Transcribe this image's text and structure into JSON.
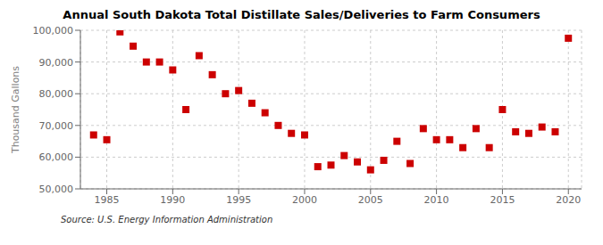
{
  "chart_data": {
    "type": "scatter",
    "title": "Annual South Dakota Total Distillate Sales/Deliveries to Farm Consumers",
    "y_label": "Thousand Gallons",
    "annotations": [
      "Source: U.S. Energy Information Administration"
    ],
    "x": [
      1984,
      1985,
      1986,
      1987,
      1988,
      1989,
      1990,
      1991,
      1992,
      1993,
      1994,
      1995,
      1996,
      1997,
      1998,
      1999,
      2000,
      2001,
      2002,
      2003,
      2004,
      2005,
      2006,
      2007,
      2008,
      2009,
      2010,
      2011,
      2012,
      2013,
      2014,
      2015,
      2016,
      2017,
      2018,
      2019,
      2020
    ],
    "values": [
      67000,
      65500,
      99500,
      95000,
      90000,
      90000,
      87500,
      75000,
      92000,
      86000,
      80000,
      81000,
      77000,
      74000,
      70000,
      67500,
      67000,
      57000,
      57500,
      60500,
      58500,
      56000,
      59000,
      65000,
      58000,
      69000,
      65500,
      65500,
      63000,
      69000,
      63000,
      75000,
      68000,
      67500,
      69500,
      68000,
      97500
    ],
    "color": "#cc0000",
    "marker": "square",
    "xlim": [
      1983,
      2021
    ],
    "ylim": [
      50000,
      100000
    ],
    "xticks": [
      1985,
      1990,
      1995,
      2000,
      2005,
      2010,
      2015,
      2020
    ],
    "yticks": [
      {
        "value": 50000,
        "label": "50,000"
      },
      {
        "value": 60000,
        "label": "60,000"
      },
      {
        "value": 70000,
        "label": "70,000"
      },
      {
        "value": 80000,
        "label": "80,000"
      },
      {
        "value": 90000,
        "label": "90,000"
      },
      {
        "value": 100000,
        "label": "100,000"
      }
    ],
    "grid": true
  }
}
